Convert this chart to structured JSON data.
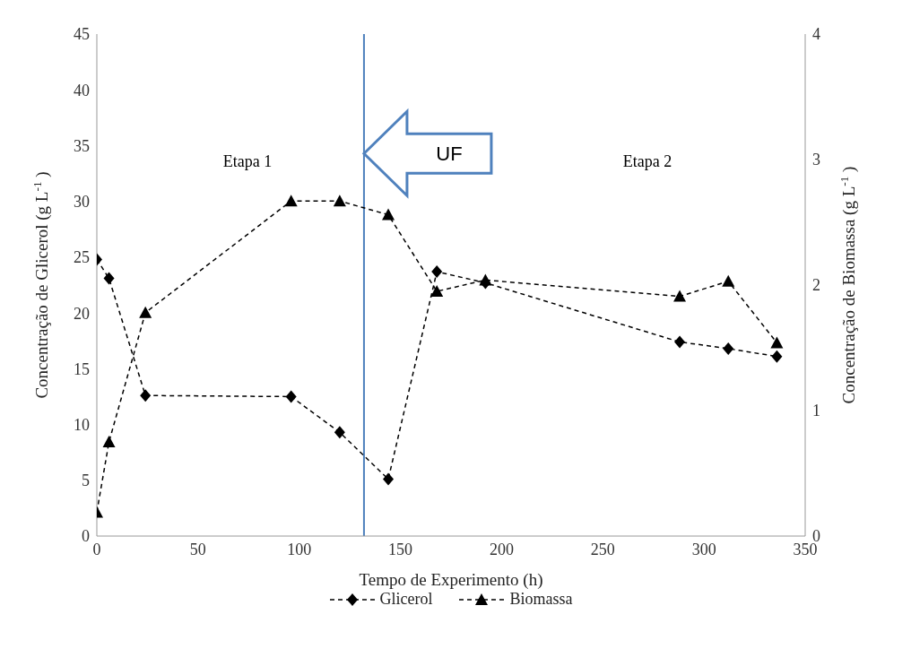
{
  "chart_data": {
    "type": "line",
    "xlabel": "Tempo de Experimento (h)",
    "ylabel": "Concentração de Glicerol (g L$^{-1}$)",
    "y2label": "Concentração de Biomassa (g L$^{-1}$)",
    "x": [
      0,
      6,
      24,
      96,
      120,
      144,
      168,
      192,
      288,
      312,
      336
    ],
    "series": [
      {
        "name": "Glicerol",
        "color": "#000000",
        "marker": "diamond",
        "values": [
          24.8,
          23.1,
          12.6,
          12.5,
          9.3,
          5.1,
          23.7,
          22.7,
          17.4,
          16.8,
          16.1
        ]
      },
      {
        "name": "Biomassa",
        "color": "#000000",
        "marker": "triangle",
        "axis": "y2",
        "values": [
          0.19,
          0.75,
          1.78,
          2.67,
          2.67,
          2.56,
          1.95,
          2.04,
          1.91,
          2.03,
          1.54
        ]
      }
    ],
    "xlim": [
      0,
      350
    ],
    "xticks": [
      0,
      50,
      100,
      150,
      200,
      250,
      300,
      350
    ],
    "ylim": [
      0,
      45
    ],
    "yticks": [
      0,
      5,
      10,
      15,
      20,
      25,
      30,
      35,
      40,
      45
    ],
    "y2lim": [
      0,
      4
    ],
    "y2ticks": [
      0,
      1,
      2,
      3,
      4
    ],
    "ref_lines": [
      {
        "axis": "x",
        "value": 132,
        "color": "#4f81bd"
      }
    ],
    "annotations": [
      "Etapa 1",
      "Etapa 2",
      "UF"
    ],
    "line_style": "dashed",
    "legend": "bottom"
  }
}
